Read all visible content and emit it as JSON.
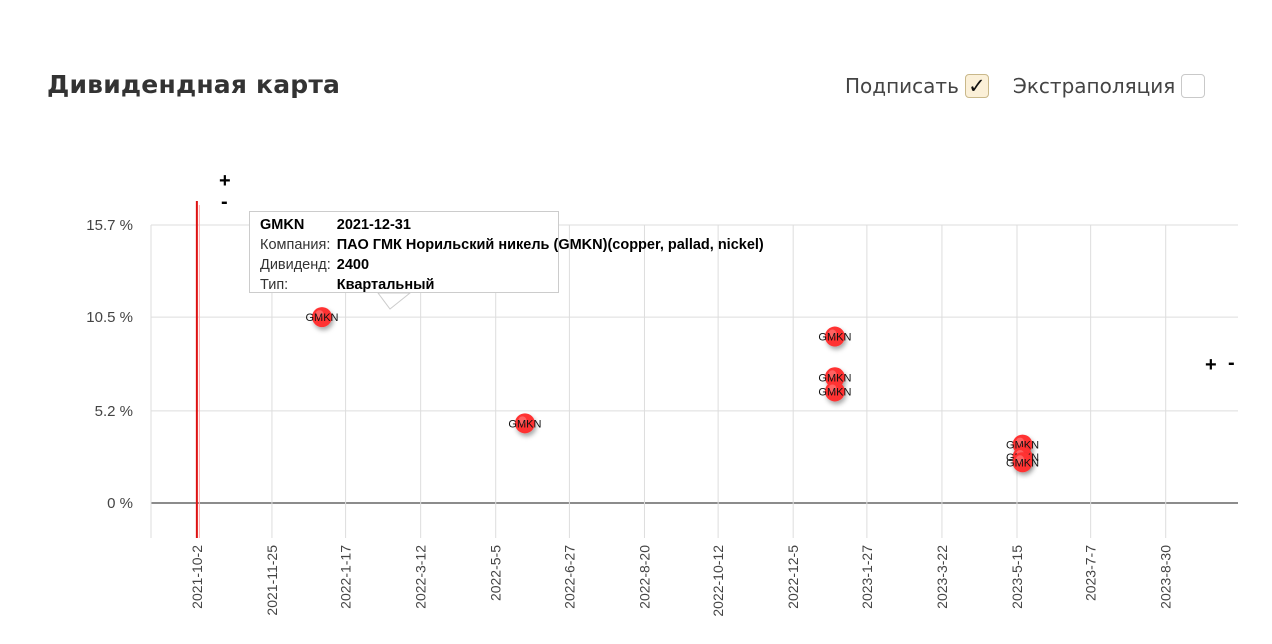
{
  "header": {
    "title": "Дивидендная карта"
  },
  "controls": {
    "label_toggle": {
      "label": "Подписать",
      "checked": true,
      "tick": "✓"
    },
    "extrapolation_toggle": {
      "label": "Экстраполяция",
      "checked": false
    }
  },
  "zoom": {
    "plus": "+",
    "minus": "-"
  },
  "tooltip": {
    "ticker": "GMKN",
    "date": "2021-12-31",
    "company_label": "Компания:",
    "company": "ПАО ГМК Норильский никель (GMKN)(copper, pallad, nickel)",
    "dividend_label": "Дивиденд:",
    "dividend": "2400",
    "type_label": "Тип:",
    "type": "Квартальный"
  },
  "chart_data": {
    "type": "scatter",
    "title": "",
    "xlabel": "",
    "ylabel": "",
    "y_ticks": [
      "15.7 %",
      "10.5 %",
      "5.2 %",
      "0 %"
    ],
    "y_tick_values": [
      15.7,
      10.5,
      5.2,
      0
    ],
    "ylim": [
      -2.0,
      15.7
    ],
    "x_ticks": [
      "2021-10-2",
      "2021-11-25",
      "2022-1-17",
      "2022-3-12",
      "2022-5-5",
      "2022-6-27",
      "2022-8-20",
      "2022-10-12",
      "2022-12-5",
      "2023-1-27",
      "2023-3-22",
      "2023-5-15",
      "2023-7-7",
      "2023-8-30"
    ],
    "xlim": [
      "2021-08-30",
      "2023-10-21"
    ],
    "current_date_marker": "2021-10-02",
    "grid": true,
    "colors": {
      "point": "#ff3030",
      "marker_line": "#dd1111",
      "grid": "#dddddd",
      "zero": "#666666"
    },
    "points": [
      {
        "label": "GMKN",
        "date": "2021-12-31",
        "value": 10.5
      },
      {
        "label": "GMKN",
        "date": "2022-05-26",
        "value": 4.5
      },
      {
        "label": "GMKN",
        "date": "2023-01-04",
        "value": 9.4
      },
      {
        "label": "GMKN",
        "date": "2023-01-04",
        "value": 7.1
      },
      {
        "label": "GMKN",
        "date": "2023-01-04",
        "value": 6.3
      },
      {
        "label": "GMKN",
        "date": "2023-05-19",
        "value": 3.3
      },
      {
        "label": "GMKN",
        "date": "2023-05-19",
        "value": 2.6
      },
      {
        "label": "GMKN",
        "date": "2023-05-19",
        "value": 2.3
      }
    ]
  }
}
